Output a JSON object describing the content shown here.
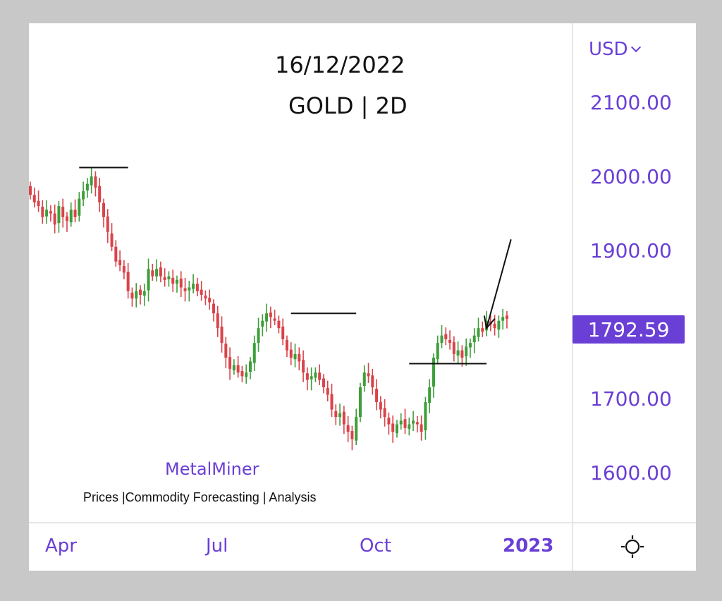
{
  "title": "16/12/2022",
  "subtitle": "GOLD | 2D",
  "currency": {
    "label": "USD",
    "icon": "chevron-down-icon"
  },
  "brand": "MetalMiner",
  "tagline": "Prices |Commodity Forecasting | Analysis",
  "settings_icon": "sun-icon",
  "colors": {
    "accent": "#6a3fd6",
    "up": "#3e9e3a",
    "down": "#d9434a"
  },
  "chart_data": {
    "type": "candlestick",
    "title": "GOLD | 2D",
    "subtitle": "16/12/2022",
    "ylim": [
      1540,
      2160
    ],
    "y_ticks": [
      {
        "value": 2100,
        "label": "2100.00"
      },
      {
        "value": 2000,
        "label": "2000.00"
      },
      {
        "value": 1900,
        "label": "1900.00"
      },
      {
        "value": 1700,
        "label": "1700.00"
      },
      {
        "value": 1600,
        "label": "1600.00"
      }
    ],
    "x_ticks": [
      {
        "label": "Apr",
        "index": 4,
        "bold": false
      },
      {
        "label": "Jul",
        "index": 49,
        "bold": false
      },
      {
        "label": "Oct",
        "index": 94,
        "bold": false
      },
      {
        "label": "2023",
        "index": 138,
        "bold": true
      }
    ],
    "current_price": {
      "value": 1792.59,
      "label": "1792.59"
    },
    "series": [
      {
        "values": [
          1960,
          1950,
          1945,
          1930,
          1940,
          1935,
          1920,
          1945,
          1930,
          1925,
          1940,
          1930,
          1955,
          1965,
          1975,
          1985,
          1970,
          1950,
          1930,
          1910,
          1890,
          1870,
          1865,
          1855,
          1830,
          1820,
          1830,
          1825,
          1830,
          1860,
          1850,
          1860,
          1850,
          1845,
          1850,
          1840,
          1845,
          1835,
          1830,
          1835,
          1840,
          1830,
          1825,
          1820,
          1815,
          1800,
          1780,
          1760,
          1740,
          1725,
          1730,
          1720,
          1715,
          1720,
          1735,
          1760,
          1780,
          1790,
          1800,
          1795,
          1790,
          1780,
          1765,
          1750,
          1740,
          1745,
          1735,
          1720,
          1710,
          1715,
          1720,
          1710,
          1700,
          1690,
          1670,
          1660,
          1665,
          1650,
          1640,
          1630,
          1660,
          1700,
          1720,
          1715,
          1700,
          1680,
          1670,
          1660,
          1650,
          1640,
          1650,
          1655,
          1645,
          1650,
          1655,
          1650,
          1640,
          1680,
          1700,
          1740,
          1760,
          1770,
          1765,
          1760,
          1745,
          1750,
          1740,
          1755,
          1760,
          1770,
          1780,
          1775,
          1790,
          1785,
          1780,
          1790,
          1795,
          1792.59
        ]
      }
    ],
    "annotations": [
      {
        "type": "hline",
        "y": 1997,
        "x_range": [
          12,
          24
        ]
      },
      {
        "type": "hline",
        "y": 1800,
        "x_range": [
          64,
          80
        ]
      },
      {
        "type": "hline",
        "y": 1732,
        "x_range": [
          93,
          112
        ]
      },
      {
        "type": "arrow",
        "x_range": [
          112,
          118
        ],
        "y_range": [
          1780,
          1900
        ]
      }
    ]
  }
}
